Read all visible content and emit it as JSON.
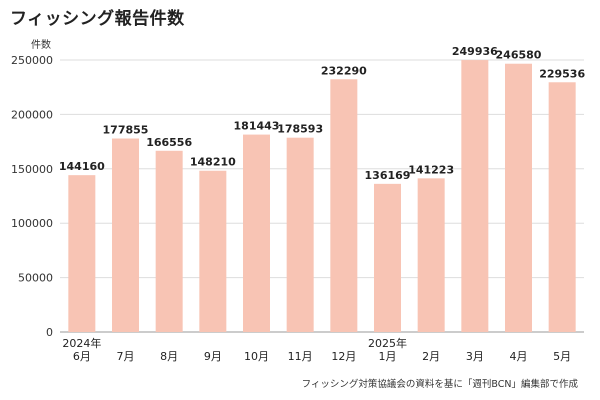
{
  "chart_data": {
    "type": "bar",
    "title": "フィッシング報告件数",
    "ylabel": "件数",
    "ylim": [
      0,
      250000
    ],
    "yticks": [
      0,
      50000,
      100000,
      150000,
      200000,
      250000
    ],
    "grid": true,
    "categories": [
      "6月",
      "7月",
      "8月",
      "9月",
      "10月",
      "11月",
      "12月",
      "1月",
      "2月",
      "3月",
      "4月",
      "5月"
    ],
    "year_labels": [
      {
        "category": "6月",
        "text": "2024年"
      },
      {
        "category": "1月",
        "text": "2025年"
      }
    ],
    "values": [
      144160,
      177855,
      166556,
      148210,
      181443,
      178593,
      232290,
      136169,
      141223,
      249936,
      246580,
      229536
    ],
    "bar_color": "#f8c4b4",
    "source": "フィッシング対策協議会の資料を基に「週刊BCN」編集部で作成"
  }
}
